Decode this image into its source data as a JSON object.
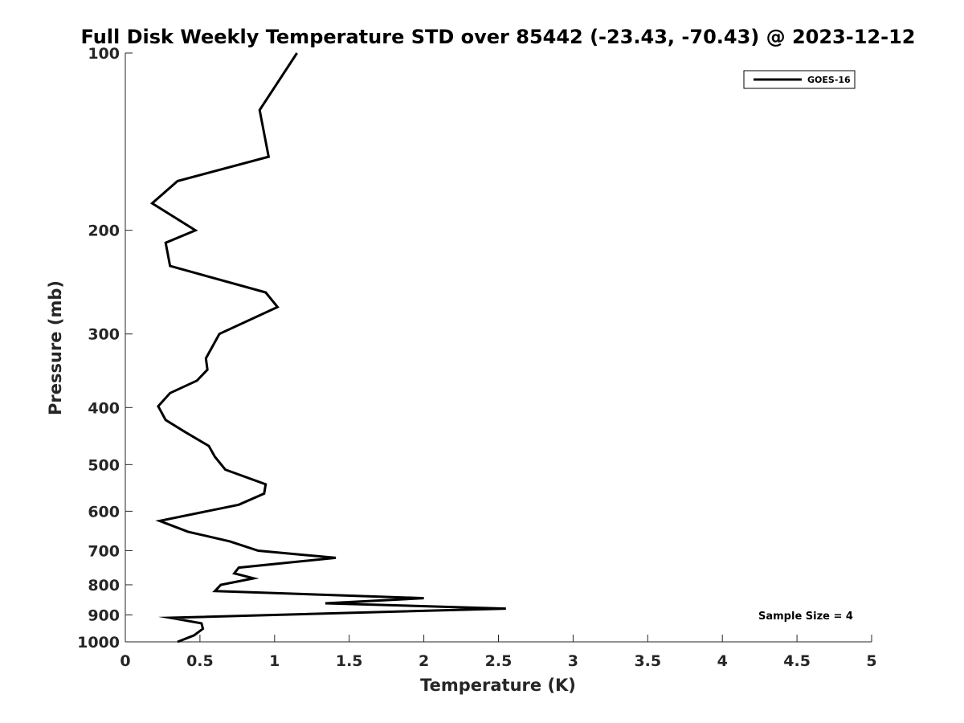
{
  "chart_data": {
    "type": "line",
    "title": "Full Disk Weekly Temperature STD over 85442 (-23.43, -70.43) @ 2023-12-12",
    "xlabel": "Temperature (K)",
    "ylabel": "Pressure (mb)",
    "xlim": [
      0,
      5
    ],
    "ylim": [
      1000,
      100
    ],
    "yscale": "log",
    "y_reversed": true,
    "x_ticks": [
      "0",
      "0.5",
      "1",
      "1.5",
      "2",
      "2.5",
      "3",
      "3.5",
      "4",
      "4.5",
      "5"
    ],
    "x_tick_values": [
      0,
      0.5,
      1,
      1.5,
      2,
      2.5,
      3,
      3.5,
      4,
      4.5,
      5
    ],
    "y_ticks": [
      "100",
      "200",
      "300",
      "400",
      "500",
      "600",
      "700",
      "800",
      "900",
      "1000"
    ],
    "y_tick_values": [
      100,
      200,
      300,
      400,
      500,
      600,
      700,
      800,
      900,
      1000
    ],
    "grid": false,
    "legend_position": "top-right",
    "series": [
      {
        "name": "GOES-16",
        "color": "#000000",
        "x": [
          1.15,
          0.9,
          0.96,
          0.35,
          0.18,
          0.47,
          0.27,
          0.3,
          0.94,
          1.02,
          0.63,
          0.54,
          0.55,
          0.48,
          0.3,
          0.22,
          0.27,
          0.4,
          0.56,
          0.6,
          0.67,
          0.94,
          0.93,
          0.76,
          0.23,
          0.42,
          0.7,
          0.89,
          1.41,
          0.76,
          0.73,
          0.86,
          0.64,
          0.6,
          2.0,
          1.34,
          2.55,
          0.3,
          0.51,
          0.52,
          0.46,
          0.35
        ],
        "y": [
          100,
          125,
          150,
          165,
          180,
          200,
          210,
          230,
          255,
          270,
          300,
          330,
          345,
          360,
          378,
          398,
          420,
          440,
          465,
          485,
          510,
          540,
          560,
          585,
          623,
          650,
          675,
          700,
          720,
          748,
          765,
          780,
          800,
          820,
          843,
          860,
          878,
          910,
          930,
          950,
          975,
          1000
        ]
      }
    ],
    "annotations": [
      "Sample Size = 4"
    ]
  }
}
